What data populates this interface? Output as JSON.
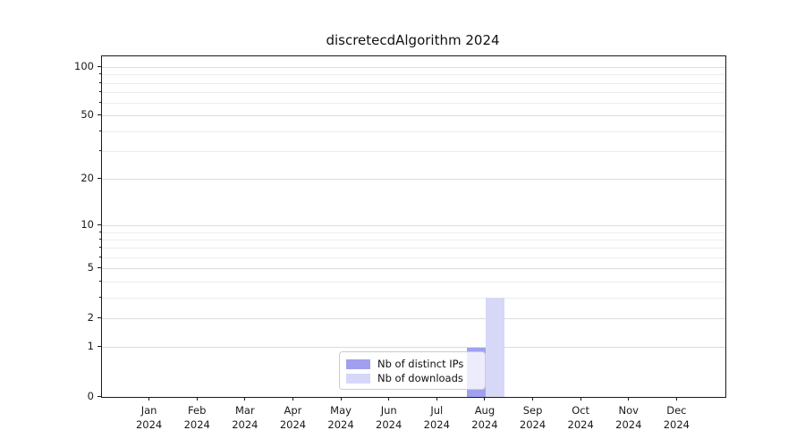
{
  "figure": {
    "title": "discretecdAlgorithm 2024",
    "background": "#ffffff"
  },
  "chart_data": {
    "type": "bar",
    "title": "discretecdAlgorithm 2024",
    "categories": [
      "Jan",
      "Feb",
      "Mar",
      "Apr",
      "May",
      "Jun",
      "Jul",
      "Aug",
      "Sep",
      "Oct",
      "Nov",
      "Dec"
    ],
    "x_tick_second_line": "2024",
    "series": [
      {
        "name": "Nb of distinct IPs",
        "color": "#a0a0ef",
        "values": [
          0,
          0,
          0,
          0,
          0,
          0,
          0,
          1,
          0,
          0,
          0,
          0
        ]
      },
      {
        "name": "Nb of downloads",
        "color": "#d7d7f8",
        "values": [
          0,
          0,
          0,
          0,
          0,
          0,
          0,
          3,
          0,
          0,
          0,
          0
        ]
      }
    ],
    "y_axis": {
      "scale": "log1p",
      "range": [
        0,
        117
      ],
      "major_ticks": [
        0,
        1,
        2,
        5,
        10,
        20,
        50,
        100
      ],
      "minor_gridlines": [
        3,
        4,
        6,
        7,
        8,
        9,
        30,
        40,
        60,
        70,
        80,
        90
      ]
    },
    "xlabel": "",
    "ylabel": "",
    "grid": true,
    "legend": {
      "position": "lower center",
      "entries": [
        "Nb of distinct IPs",
        "Nb of downloads"
      ]
    }
  },
  "colors": {
    "axis": "#1a1a1a",
    "major_grid": "#dcdcdc",
    "minor_grid": "#ececec",
    "legend_border": "#cccccc",
    "legend_background": "rgba(255,255,255,0.8)",
    "series_distinct_ips": "#a0a0ef",
    "series_downloads": "#d7d7f8"
  }
}
